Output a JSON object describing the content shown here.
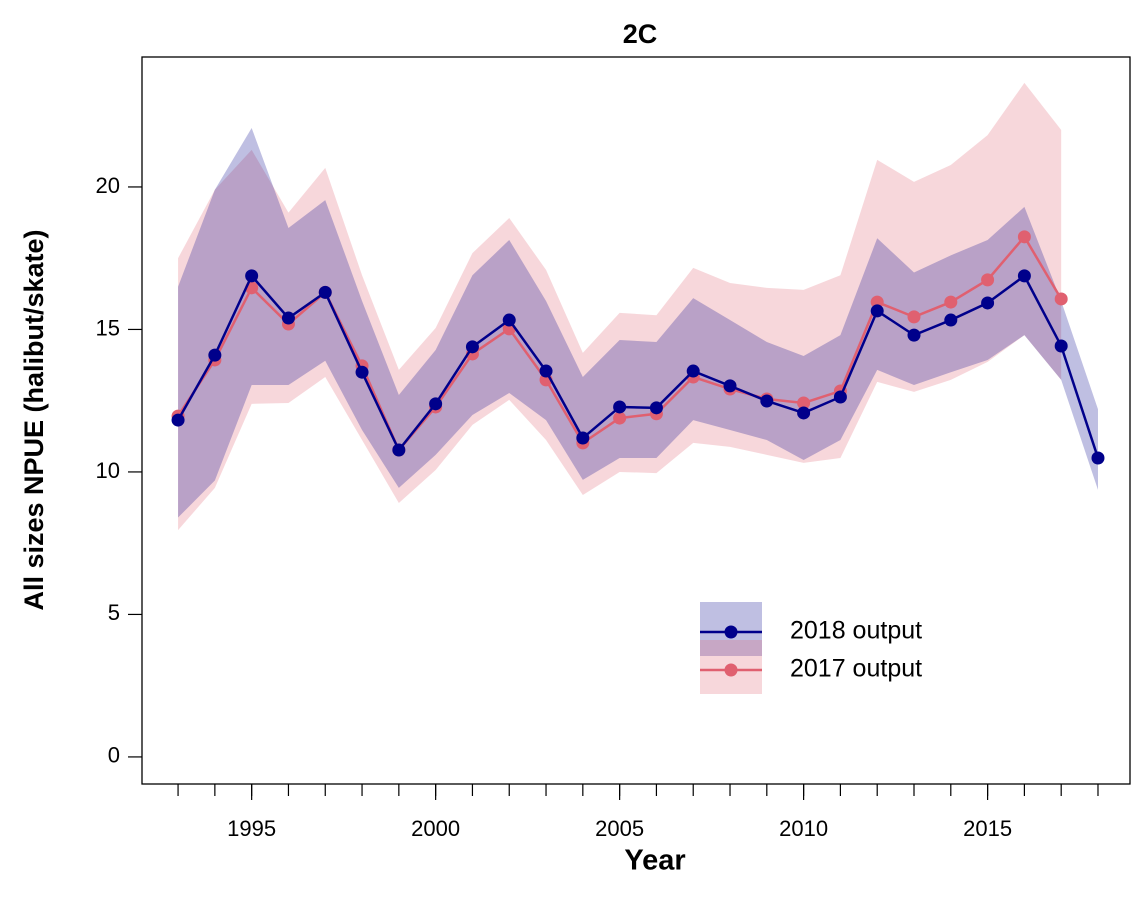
{
  "chart_data": {
    "type": "line",
    "title": "2C",
    "x_label": "Year",
    "y_label": "All sizes NPUE (halibut/skate)",
    "x": [
      1993,
      1994,
      1995,
      1996,
      1997,
      1998,
      1999,
      2000,
      2001,
      2002,
      2003,
      2004,
      2005,
      2006,
      2007,
      2008,
      2009,
      2010,
      2011,
      2012,
      2013,
      2014,
      2015,
      2016,
      2017,
      2018
    ],
    "series": [
      {
        "name": "2017 output",
        "color": "#e06070",
        "values": [
          11.96,
          13.93,
          16.46,
          15.19,
          16.3,
          13.72,
          10.77,
          12.28,
          14.14,
          15.02,
          13.23,
          11.02,
          11.89,
          12.04,
          13.33,
          12.91,
          12.56,
          12.42,
          12.84,
          15.96,
          15.44,
          15.96,
          16.74,
          18.25,
          16.07,
          null
        ],
        "lower": [
          7.96,
          9.44,
          12.39,
          12.42,
          13.33,
          11.12,
          8.91,
          10.07,
          11.65,
          12.53,
          11.12,
          9.19,
          10.0,
          9.96,
          11.02,
          10.88,
          10.6,
          10.32,
          10.49,
          13.16,
          12.81,
          13.23,
          13.86,
          14.8,
          13.23,
          null
        ],
        "upper": [
          17.5,
          19.9,
          21.3,
          19.1,
          20.67,
          16.9,
          13.58,
          15.05,
          17.68,
          18.91,
          17.09,
          14.18,
          15.58,
          15.5,
          17.16,
          16.63,
          16.46,
          16.39,
          16.9,
          20.95,
          20.18,
          20.77,
          21.82,
          23.65,
          22.0,
          null
        ]
      },
      {
        "name": "2018 output",
        "color": "#00008b",
        "values": [
          11.82,
          14.1,
          16.88,
          15.4,
          16.3,
          13.5,
          10.77,
          12.39,
          14.39,
          15.33,
          13.54,
          11.19,
          12.28,
          12.25,
          13.54,
          13.02,
          12.49,
          12.07,
          12.63,
          15.65,
          14.8,
          15.33,
          15.93,
          16.88,
          14.42,
          10.49
        ],
        "lower": [
          8.4,
          9.7,
          13.05,
          13.05,
          13.9,
          11.47,
          9.44,
          10.6,
          12.0,
          12.77,
          11.82,
          9.72,
          10.49,
          10.49,
          11.82,
          11.47,
          11.12,
          10.42,
          11.12,
          13.58,
          13.05,
          13.5,
          13.93,
          14.8,
          13.23,
          9.37
        ],
        "upper": [
          16.5,
          19.9,
          22.07,
          18.56,
          19.54,
          16.0,
          12.7,
          14.28,
          16.9,
          18.14,
          16.0,
          13.33,
          14.63,
          14.56,
          16.1,
          15.33,
          14.56,
          14.07,
          14.8,
          18.2,
          17.0,
          17.6,
          18.14,
          19.3,
          16.0,
          12.2
        ]
      }
    ],
    "xlim": [
      1992.02,
      2018.87
    ],
    "ylim": [
      -0.95,
      24.56
    ],
    "xticks": [
      1995,
      2000,
      2005,
      2010,
      2015
    ],
    "yticks": [
      0,
      5,
      10,
      15,
      20
    ],
    "legend": "bottom-right"
  }
}
